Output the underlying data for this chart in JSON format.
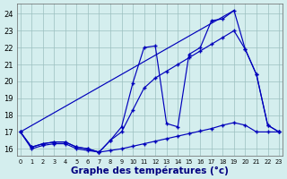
{
  "xlabel": "Graphe des températures (°c)",
  "background_color": "#d4eeee",
  "line_color": "#0000bb",
  "grid_color": "#9bbfbf",
  "yticks": [
    16,
    17,
    18,
    19,
    20,
    21,
    22,
    23,
    24
  ],
  "xticks": [
    0,
    1,
    2,
    3,
    4,
    5,
    6,
    7,
    8,
    9,
    10,
    11,
    12,
    13,
    14,
    15,
    16,
    17,
    18,
    19,
    20,
    21,
    22,
    23
  ],
  "xlim": [
    -0.3,
    23.3
  ],
  "ylim": [
    15.6,
    24.6
  ],
  "line1_x": [
    0,
    1,
    2,
    3,
    4,
    5,
    6,
    7,
    8,
    9,
    10,
    11,
    12,
    13,
    14,
    15,
    16,
    17,
    18,
    19,
    20,
    21,
    22,
    23
  ],
  "line1_y": [
    17.0,
    16.0,
    16.2,
    16.3,
    16.3,
    16.0,
    15.9,
    15.8,
    16.5,
    17.3,
    19.9,
    22.0,
    22.1,
    17.5,
    17.3,
    21.6,
    22.0,
    23.6,
    23.7,
    24.2,
    21.9,
    20.4,
    17.4,
    17.0
  ],
  "line2_x": [
    0,
    1,
    2,
    3,
    4,
    5,
    6,
    7,
    8,
    9,
    10,
    11,
    12,
    13,
    14,
    15,
    16,
    17,
    18,
    19,
    20,
    21,
    22,
    23
  ],
  "line2_y": [
    17.0,
    16.1,
    16.3,
    16.4,
    16.4,
    16.1,
    16.0,
    15.8,
    16.5,
    17.0,
    18.3,
    19.6,
    20.2,
    20.6,
    21.0,
    21.4,
    21.8,
    22.2,
    22.6,
    23.0,
    21.9,
    20.4,
    17.4,
    17.0
  ],
  "line3_x": [
    0,
    19
  ],
  "line3_y": [
    17.0,
    24.2
  ],
  "line4_x": [
    0,
    1,
    2,
    3,
    4,
    5,
    6,
    7,
    8,
    9,
    10,
    11,
    12,
    13,
    14,
    15,
    16,
    17,
    18,
    19,
    20,
    21,
    22,
    23
  ],
  "line4_y": [
    17.0,
    16.1,
    16.3,
    16.4,
    16.4,
    16.1,
    16.0,
    15.8,
    15.9,
    16.0,
    16.15,
    16.3,
    16.45,
    16.6,
    16.75,
    16.9,
    17.05,
    17.2,
    17.4,
    17.55,
    17.4,
    17.0,
    17.0,
    17.0
  ]
}
